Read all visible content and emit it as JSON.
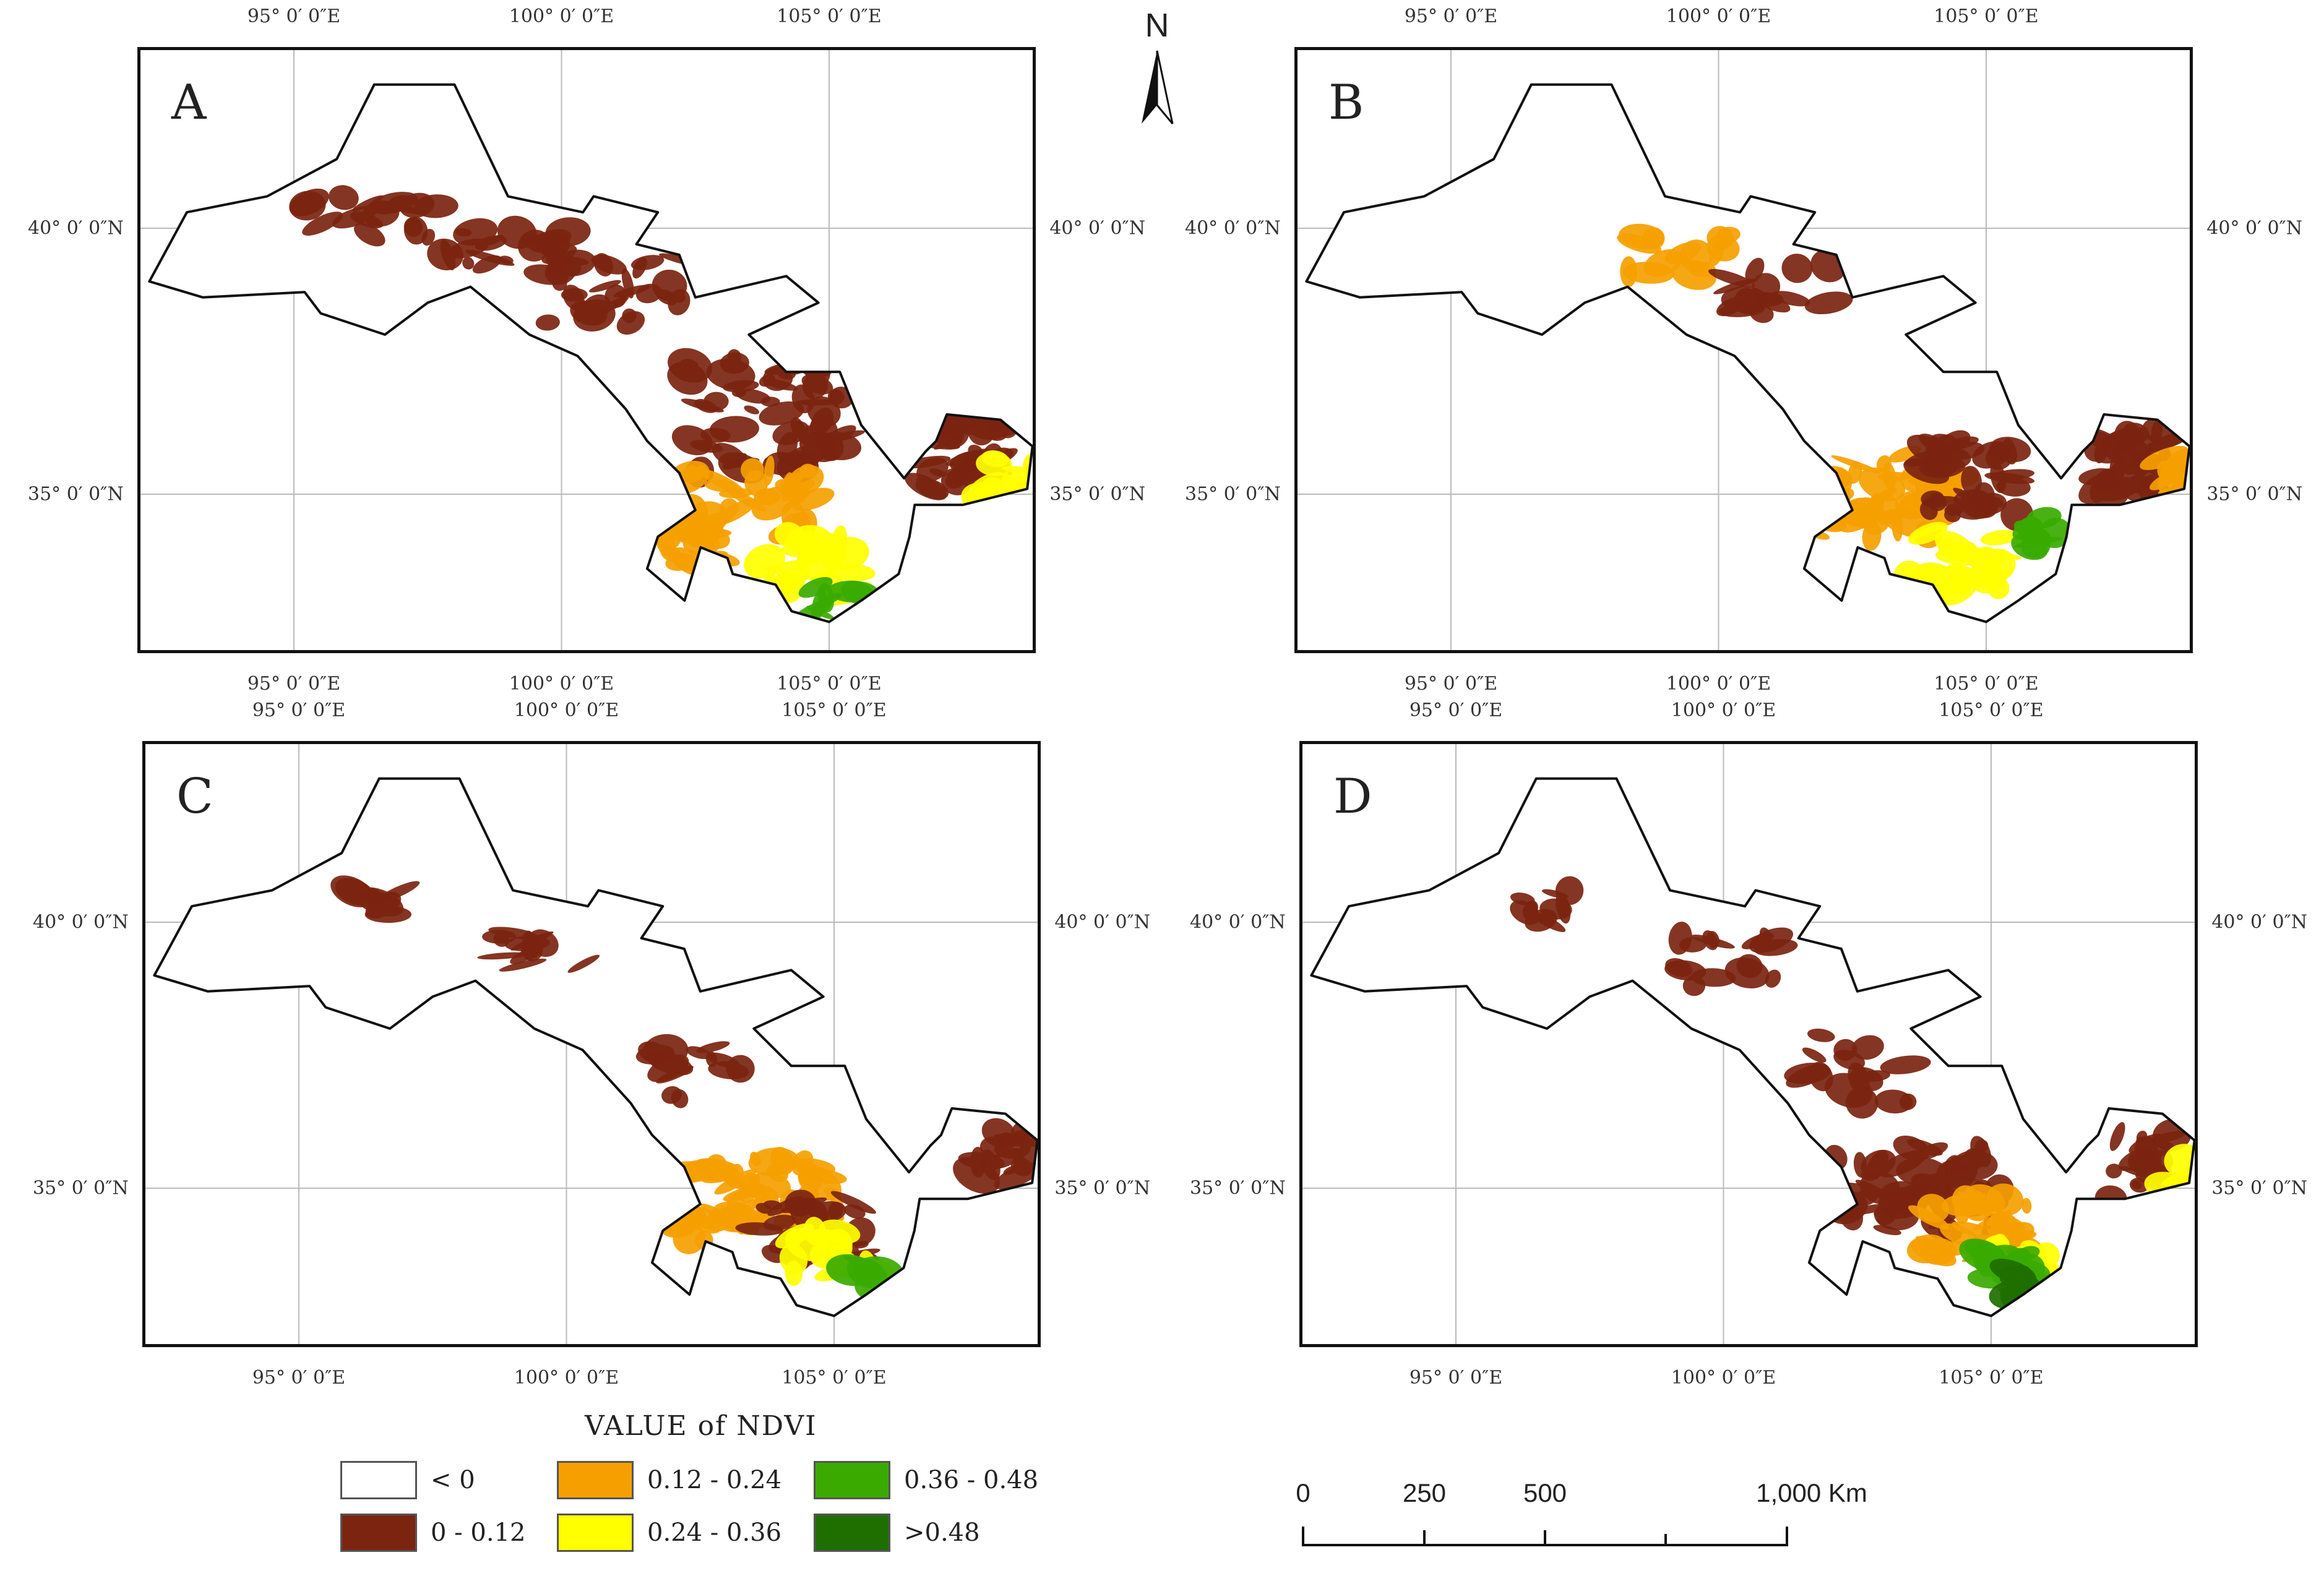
{
  "panels": [
    {
      "id": "A",
      "label": "A",
      "layout": "pA"
    },
    {
      "id": "B",
      "label": "B",
      "layout": "pB"
    },
    {
      "id": "C",
      "label": "C",
      "layout": "pC"
    },
    {
      "id": "D",
      "label": "D",
      "layout": "pD"
    }
  ],
  "ticks": {
    "lon": [
      "95° 0′ 0″E",
      "100° 0′ 0″E",
      "105° 0′ 0″E"
    ],
    "lat": [
      "40° 0′ 0″N",
      "35° 0′ 0″N"
    ]
  },
  "north_arrow": {
    "label": "N"
  },
  "legend": {
    "title": "VALUE of NDVI",
    "items": [
      {
        "label": "< 0",
        "color": "#ffffff"
      },
      {
        "label": "0 - 0.12",
        "color": "#7b2410"
      },
      {
        "label": "0.12 - 0.24",
        "color": "#f5a000"
      },
      {
        "label": "0.24 - 0.36",
        "color": "#ffff00"
      },
      {
        "label": "0.36 - 0.48",
        "color": "#3aaa00"
      },
      {
        "label": ">0.48",
        "color": "#1e6e00"
      }
    ]
  },
  "scale_bar": {
    "labels": [
      "0",
      "250",
      "500",
      "1,000 Km"
    ]
  },
  "palette": {
    "outline": "#111111",
    "grid": "#bbbbbb",
    "dark": "#7b2410",
    "orange": "#f5a000",
    "yellow": "#ffff00",
    "green": "#3aaa00",
    "dkgreen": "#1e6e00"
  }
}
